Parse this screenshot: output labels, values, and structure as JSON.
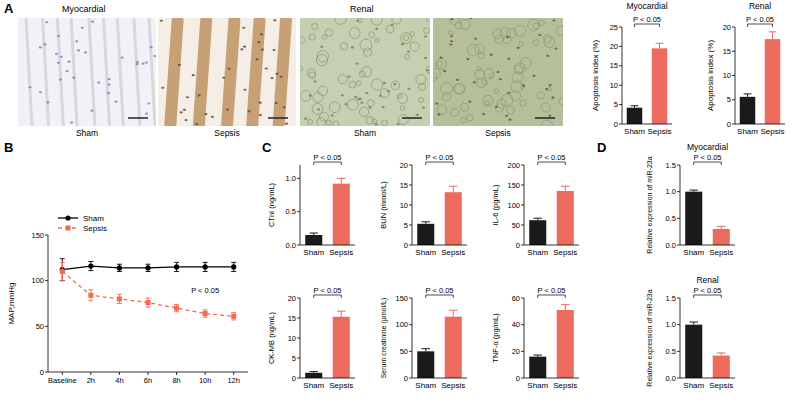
{
  "panel_labels": [
    "A",
    "B",
    "C",
    "D"
  ],
  "micrographs": [
    {
      "title": "Myocardial",
      "labels": [
        "Sham",
        "Sepsis"
      ]
    },
    {
      "title": "Renal",
      "labels": [
        "Sham",
        "Sepsis"
      ]
    }
  ],
  "chart_data": [
    {
      "type": "bar",
      "title": "Myocardial",
      "y_label": "Apoptosis index (%)",
      "categories": [
        "Sham",
        "Sepsis"
      ],
      "values": [
        4.2,
        19.5
      ],
      "errors": [
        0.5,
        1.3
      ],
      "colors": [
        "#1a1a1a",
        "#ec6a5e"
      ],
      "ylim": [
        0,
        25
      ],
      "yticks": [
        0,
        5,
        10,
        15,
        20,
        25
      ],
      "annotation": "P < 0.05"
    },
    {
      "type": "bar",
      "title": "Renal",
      "y_label": "Apoptosis index (%)",
      "categories": [
        "Sham",
        "Sepsis"
      ],
      "values": [
        5.6,
        17.5
      ],
      "errors": [
        0.6,
        1.5
      ],
      "colors": [
        "#1a1a1a",
        "#ec6a5e"
      ],
      "ylim": [
        0,
        20
      ],
      "yticks": [
        0,
        5,
        10,
        15,
        20
      ],
      "annotation": "P < 0.05"
    },
    {
      "type": "line",
      "y_label": "MAP,mmHg",
      "categories": [
        "Baseline",
        "2h",
        "4h",
        "6h",
        "8h",
        "10h",
        "12h"
      ],
      "series": [
        {
          "name": "Sham",
          "color": "#000000",
          "marker": "circle",
          "line_style": "solid",
          "values": [
            112,
            116,
            114,
            114,
            115,
            115,
            115
          ],
          "errors": [
            12,
            5,
            4,
            4,
            5,
            5,
            5
          ]
        },
        {
          "name": "Sepsis",
          "color": "#f26b4f",
          "marker": "square",
          "line_style": "dashed",
          "values": [
            110,
            84,
            80,
            76,
            70,
            64,
            61
          ],
          "errors": [
            10,
            6,
            5,
            5,
            4,
            4,
            4
          ]
        }
      ],
      "ylim": [
        0,
        150
      ],
      "yticks": [
        0,
        50,
        100,
        150
      ],
      "legend": "top-left",
      "annotation": "P < 0.05"
    },
    {
      "type": "bar",
      "y_label": "CTnI (ng/mL)",
      "categories": [
        "Sham",
        "Sepsis"
      ],
      "values": [
        0.15,
        0.92
      ],
      "errors": [
        0.03,
        0.08
      ],
      "colors": [
        "#1a1a1a",
        "#ec6a5e"
      ],
      "ylim": [
        0,
        1.2
      ],
      "yticks": [
        {
          "value": 0,
          "label": "0.0"
        },
        {
          "value": 0.5,
          "label": "0.5"
        },
        {
          "value": 1,
          "label": "1.0"
        }
      ],
      "annotation": "P < 0.05"
    },
    {
      "type": "bar",
      "y_label": "CK-MB (ng/mL)",
      "categories": [
        "Sham",
        "Sepsis"
      ],
      "values": [
        1.3,
        15.3
      ],
      "errors": [
        0.3,
        1.4
      ],
      "colors": [
        "#1a1a1a",
        "#ec6a5e"
      ],
      "ylim": [
        0,
        20
      ],
      "yticks": [
        0,
        5,
        10,
        15,
        20
      ],
      "annotation": "P < 0.05"
    },
    {
      "type": "bar",
      "y_label": "BUN (mmol/L)",
      "categories": [
        "Sham",
        "Sepsis"
      ],
      "values": [
        5.3,
        13.2
      ],
      "errors": [
        0.5,
        1.5
      ],
      "colors": [
        "#1a1a1a",
        "#ec6a5e"
      ],
      "ylim": [
        0,
        20
      ],
      "yticks": [
        0,
        5,
        10,
        15,
        20
      ],
      "annotation": "P < 0.05"
    },
    {
      "type": "bar",
      "y_label": "Serum creatinine (μmol/L)",
      "categories": [
        "Sham",
        "Sepsis"
      ],
      "values": [
        50,
        115
      ],
      "errors": [
        5,
        12
      ],
      "colors": [
        "#1a1a1a",
        "#ec6a5e"
      ],
      "ylim": [
        0,
        150
      ],
      "yticks": [
        0,
        50,
        100,
        150
      ],
      "annotation": "P < 0.05"
    },
    {
      "type": "bar",
      "y_label": "IL-6 (pg/mL)",
      "categories": [
        "Sham",
        "Sepsis"
      ],
      "values": [
        62,
        135
      ],
      "errors": [
        5,
        12
      ],
      "colors": [
        "#1a1a1a",
        "#ec6a5e"
      ],
      "ylim": [
        0,
        200
      ],
      "yticks": [
        0,
        50,
        100,
        150,
        200
      ],
      "annotation": "P < 0.05"
    },
    {
      "type": "bar",
      "y_label": "TNF-α (pg/mL)",
      "categories": [
        "Sham",
        "Sepsis"
      ],
      "values": [
        16,
        51
      ],
      "errors": [
        1.2,
        4
      ],
      "colors": [
        "#1a1a1a",
        "#ec6a5e"
      ],
      "ylim": [
        0,
        60
      ],
      "yticks": [
        0,
        20,
        40,
        60
      ],
      "annotation": "P < 0.05"
    },
    {
      "type": "bar",
      "title": "Myocardial",
      "y_label": "Relative expression of miR-23a",
      "categories": [
        "Sham",
        "Sepsis"
      ],
      "values": [
        1.0,
        0.3
      ],
      "errors": [
        0.03,
        0.05
      ],
      "colors": [
        "#1a1a1a",
        "#ec6a5e"
      ],
      "ylim": [
        0,
        1.5
      ],
      "yticks": [
        {
          "value": 0,
          "label": "0.0"
        },
        {
          "value": 0.5,
          "label": "0.5"
        },
        {
          "value": 1,
          "label": "1.0"
        },
        {
          "value": 1.5,
          "label": "1.5"
        }
      ],
      "annotation": "P < 0.05"
    },
    {
      "type": "bar",
      "title": "Renal",
      "y_label": "Relative expression of miR-23a",
      "categories": [
        "Sham",
        "Sepsis"
      ],
      "values": [
        1.0,
        0.42
      ],
      "errors": [
        0.05,
        0.05
      ],
      "colors": [
        "#1a1a1a",
        "#ec6a5e"
      ],
      "ylim": [
        0,
        1.5
      ],
      "yticks": [
        {
          "value": 0,
          "label": "0.0"
        },
        {
          "value": 0.5,
          "label": "0.5"
        },
        {
          "value": 1,
          "label": "1.0"
        },
        {
          "value": 1.5,
          "label": "1.5"
        }
      ],
      "annotation": "P < 0.05"
    }
  ]
}
